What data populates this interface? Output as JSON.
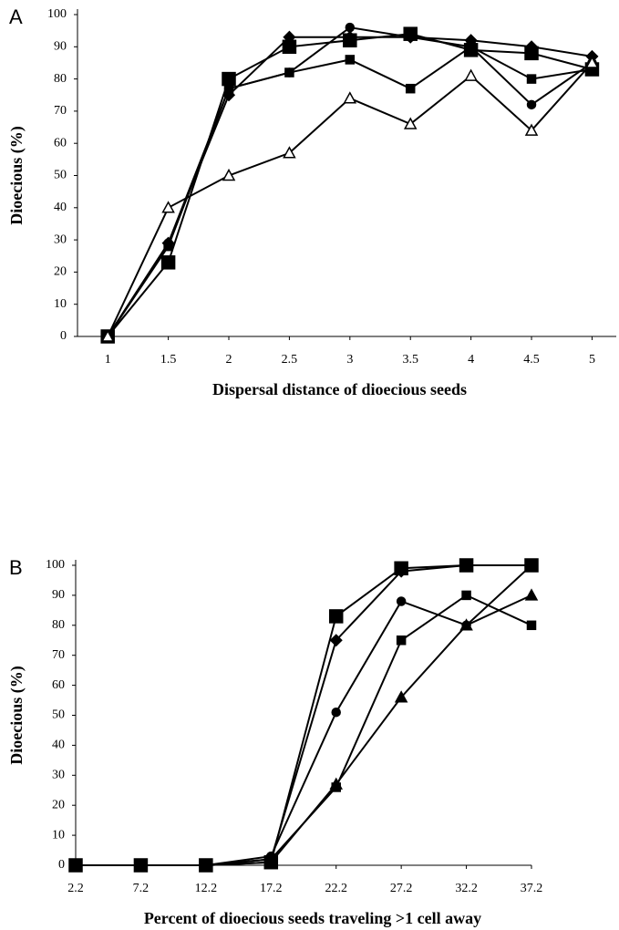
{
  "chart_data": [
    {
      "type": "line",
      "panel": "A",
      "y_label": "Dioecious (%)",
      "x_label": "Dispersal distance of dioecious seeds",
      "x": [
        1,
        1.5,
        2,
        2.5,
        3,
        3.5,
        4,
        4.5,
        5
      ],
      "xlim": [
        0.75,
        5.2
      ],
      "xticks": [
        1,
        1.5,
        2,
        2.5,
        3,
        3.5,
        4,
        4.5,
        5
      ],
      "ylim": [
        0,
        100
      ],
      "yticks": [
        0,
        10,
        20,
        30,
        40,
        50,
        60,
        70,
        80,
        90,
        100
      ],
      "series": [
        {
          "marker": "large-square",
          "color": "#000000",
          "values": [
            0,
            23,
            80,
            90,
            92,
            94,
            89,
            88,
            83
          ]
        },
        {
          "marker": "small-square",
          "color": "#000000",
          "values": [
            0,
            28,
            77,
            82,
            86,
            77,
            90,
            80,
            83
          ]
        },
        {
          "marker": "circle",
          "color": "#000000",
          "values": [
            0,
            29,
            77,
            82,
            96,
            93,
            90,
            72,
            85
          ]
        },
        {
          "marker": "diamond",
          "color": "#000000",
          "values": [
            0,
            29,
            75,
            93,
            93,
            93,
            92,
            90,
            87
          ]
        },
        {
          "marker": "open-triangle",
          "color": "#000000",
          "values": [
            0,
            40,
            50,
            57,
            74,
            66,
            81,
            64,
            85
          ]
        }
      ]
    },
    {
      "type": "line",
      "panel": "B",
      "y_label": "Dioecious (%)",
      "x_label": "Percent of dioecious seeds traveling >1 cell away",
      "x": [
        2.2,
        7.2,
        12.2,
        17.2,
        22.2,
        27.2,
        32.2,
        37.2
      ],
      "xlim": [
        2.2,
        37.2
      ],
      "xticks": [
        2.2,
        7.2,
        12.2,
        17.2,
        22.2,
        27.2,
        32.2,
        37.2
      ],
      "ylim": [
        0,
        100
      ],
      "yticks": [
        0,
        10,
        20,
        30,
        40,
        50,
        60,
        70,
        80,
        90,
        100
      ],
      "series": [
        {
          "marker": "large-square",
          "color": "#000000",
          "values": [
            0,
            0,
            0,
            1,
            83,
            99,
            100,
            100
          ]
        },
        {
          "marker": "diamond",
          "color": "#000000",
          "values": [
            0,
            0,
            0,
            2,
            75,
            98,
            100,
            100
          ]
        },
        {
          "marker": "circle",
          "color": "#000000",
          "values": [
            0,
            0,
            0,
            3,
            51,
            88,
            80,
            100
          ]
        },
        {
          "marker": "small-square",
          "color": "#000000",
          "values": [
            0,
            0,
            0,
            2,
            26,
            75,
            90,
            80
          ]
        },
        {
          "marker": "triangle",
          "color": "#000000",
          "values": [
            0,
            0,
            0,
            1,
            27,
            56,
            80,
            90
          ]
        }
      ]
    }
  ]
}
